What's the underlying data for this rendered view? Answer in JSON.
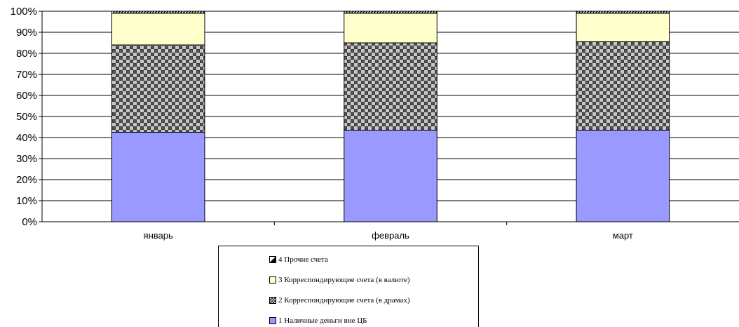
{
  "chart_data": {
    "type": "bar",
    "stacked": "percent",
    "categories": [
      "январь",
      "февраль",
      "март"
    ],
    "series": [
      {
        "name": "1 Наличные деньги вне ЦБ",
        "values": [
          42.5,
          43.5,
          43.5
        ],
        "color": "#9999ff",
        "pattern": "solid"
      },
      {
        "name": "2 Корреспондирующие счета (в драмах)",
        "values": [
          41.5,
          41.5,
          42.0
        ],
        "color": "#808080",
        "pattern": "checker"
      },
      {
        "name": "3 Корреспондирующие счета (в валюте)",
        "values": [
          15.0,
          14.0,
          13.5
        ],
        "color": "#ffffcc",
        "pattern": "solid"
      },
      {
        "name": "4 Прочие счета",
        "values": [
          1.0,
          1.0,
          1.0
        ],
        "color": "#000000",
        "pattern": "diagonal"
      }
    ],
    "y_ticks": [
      "0%",
      "10%",
      "20%",
      "30%",
      "40%",
      "50%",
      "60%",
      "70%",
      "80%",
      "90%",
      "100%"
    ],
    "ylim": [
      0,
      100
    ],
    "grid": true,
    "legend_position": "bottom"
  },
  "legend": {
    "items": [
      {
        "label": "4 Прочие счета"
      },
      {
        "label": "3 Корреспондирующие счета (в валюте)"
      },
      {
        "label": "2 Корреспондирующие счета (в драмах)"
      },
      {
        "label": "1 Наличные деньги вне ЦБ"
      }
    ]
  }
}
